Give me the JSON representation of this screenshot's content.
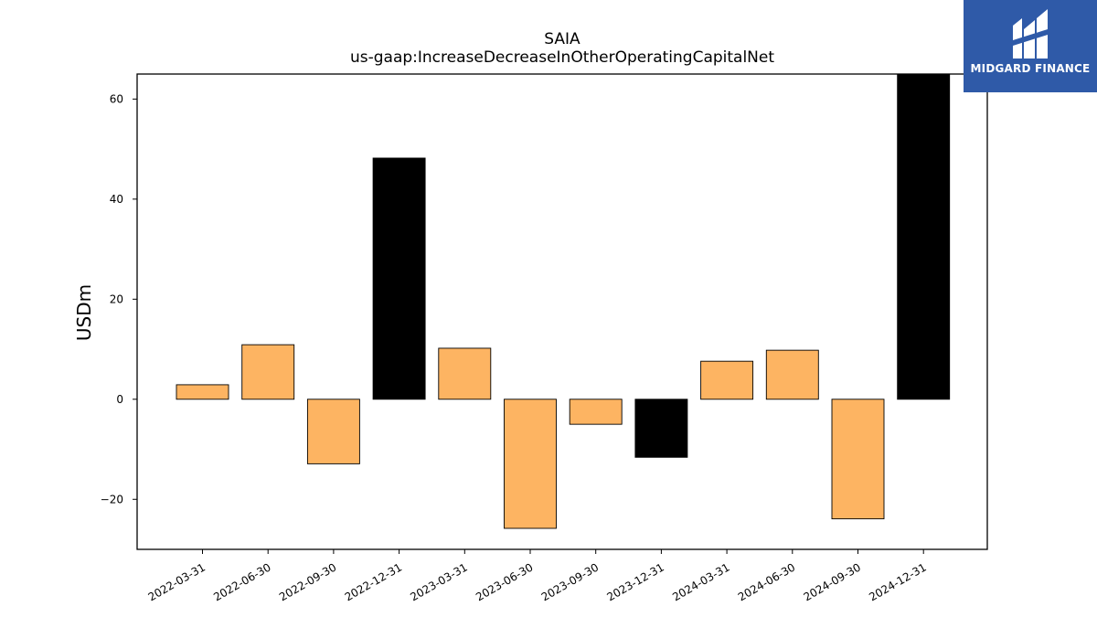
{
  "chart_data": {
    "type": "bar",
    "title": "SAIA",
    "subtitle": "us-gaap:IncreaseDecreaseInOtherOperatingCapitalNet",
    "xlabel": "",
    "ylabel": "USDm",
    "ylim": [
      -30,
      65
    ],
    "yticks": [
      -20,
      0,
      20,
      40,
      60
    ],
    "ytick_labels": [
      "−20",
      "0",
      "20",
      "40",
      "60"
    ],
    "grid": false,
    "categories": [
      "2022-03-31",
      "2022-06-30",
      "2022-09-30",
      "2022-12-31",
      "2023-03-31",
      "2023-06-30",
      "2023-09-30",
      "2023-12-31",
      "2024-03-31",
      "2024-06-30",
      "2024-09-30",
      "2024-12-31"
    ],
    "values": [
      2.9,
      10.9,
      -12.9,
      48.2,
      10.2,
      -25.8,
      -5.0,
      -11.6,
      7.6,
      9.8,
      -23.9,
      65.0
    ],
    "colors": {
      "quarter": "#fdb462",
      "year_end": "#000000",
      "edge": "#000000"
    },
    "bar_color_by_category": [
      "quarter",
      "quarter",
      "quarter",
      "year_end",
      "quarter",
      "quarter",
      "quarter",
      "year_end",
      "quarter",
      "quarter",
      "quarter",
      "year_end"
    ]
  },
  "logo": {
    "text": "MIDGARD FINANCE",
    "background": "#2f5aa8"
  }
}
